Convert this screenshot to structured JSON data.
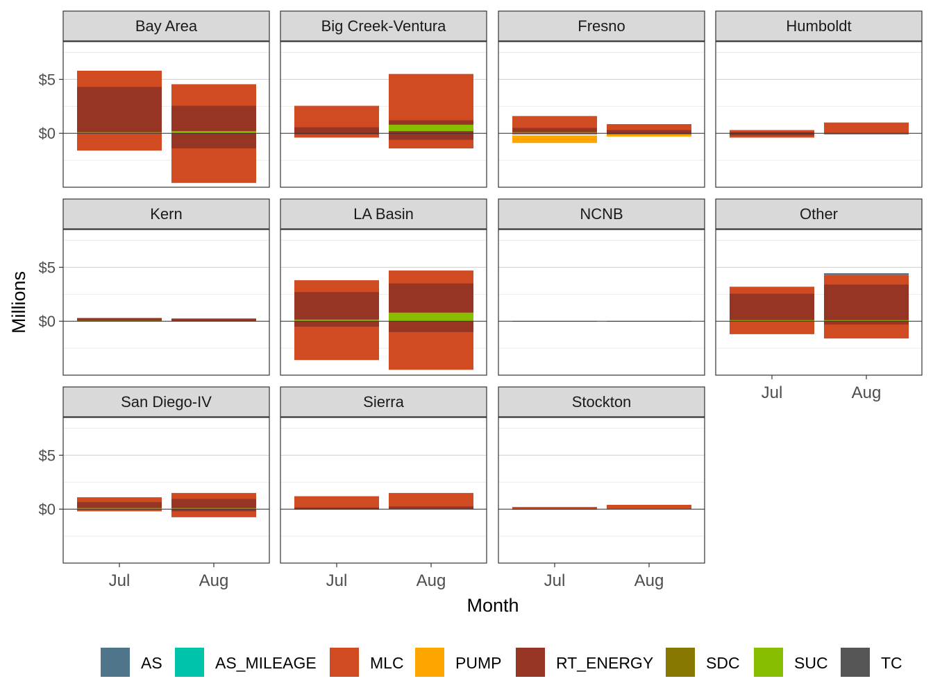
{
  "chart_data": {
    "type": "bar",
    "stacked": true,
    "faceted": true,
    "xlabel": "Month",
    "ylabel": "Millions",
    "categories": [
      "Jul",
      "Aug"
    ],
    "ylim": [
      -5,
      8.5
    ],
    "yticks": [
      0,
      5
    ],
    "ytick_labels": [
      "$0",
      "$5"
    ],
    "legend_position": "bottom",
    "legend": [
      {
        "name": "AS",
        "color": "#4E7589"
      },
      {
        "name": "AS_MILEAGE",
        "color": "#00C4AA"
      },
      {
        "name": "MLC",
        "color": "#D04A22"
      },
      {
        "name": "PUMP",
        "color": "#FFA500"
      },
      {
        "name": "RT_ENERGY",
        "color": "#963523"
      },
      {
        "name": "SDC",
        "color": "#867800"
      },
      {
        "name": "SUC",
        "color": "#87BE00"
      },
      {
        "name": "TC",
        "color": "#555555"
      }
    ],
    "facets": [
      {
        "name": "Bay Area",
        "values": {
          "Jul": {
            "MLC": [
              -1.6,
              5.8
            ],
            "RT_ENERGY": [
              0,
              4.3
            ],
            "SUC": [
              0,
              0.1
            ]
          },
          "Aug": {
            "MLC": [
              -4.6,
              4.55
            ],
            "RT_ENERGY": [
              -1.4,
              2.55
            ],
            "SUC": [
              0,
              0.2
            ]
          }
        }
      },
      {
        "name": "Big Creek-Ventura",
        "values": {
          "Jul": {
            "MLC": [
              -0.4,
              2.55
            ],
            "RT_ENERGY": [
              -0.1,
              0.55
            ]
          },
          "Aug": {
            "MLC": [
              -1.4,
              5.5
            ],
            "RT_ENERGY": [
              -0.6,
              1.2
            ],
            "SUC": [
              0.2,
              0.8
            ]
          }
        }
      },
      {
        "name": "Fresno",
        "values": {
          "Jul": {
            "MLC": [
              -0.1,
              1.6
            ],
            "RT_ENERGY": [
              0,
              0.5
            ],
            "SUC": [
              0,
              0.1
            ],
            "PUMP": [
              -0.9,
              -0.2
            ]
          },
          "Aug": {
            "MLC": [
              0,
              0.85
            ],
            "RT_ENERGY": [
              -0.1,
              0.3
            ],
            "PUMP": [
              -0.3,
              -0.1
            ]
          }
        }
      },
      {
        "name": "Humboldt",
        "values": {
          "Jul": {
            "MLC": [
              -0.4,
              0.3
            ],
            "RT_ENERGY": [
              -0.2,
              0.1
            ]
          },
          "Aug": {
            "MLC": [
              -0.1,
              1.0
            ]
          }
        }
      },
      {
        "name": "Kern",
        "values": {
          "Jul": {
            "RT_ENERGY": [
              0,
              0.3
            ],
            "SUC": [
              0,
              0.05
            ]
          },
          "Aug": {
            "RT_ENERGY": [
              0,
              0.25
            ]
          }
        }
      },
      {
        "name": "LA Basin",
        "values": {
          "Jul": {
            "MLC": [
              -3.6,
              3.8
            ],
            "RT_ENERGY": [
              -0.5,
              2.7
            ],
            "SUC": [
              0,
              0.15
            ]
          },
          "Aug": {
            "MLC": [
              -4.5,
              4.7
            ],
            "RT_ENERGY": [
              -1.0,
              3.5
            ],
            "SUC": [
              0,
              0.8
            ]
          }
        }
      },
      {
        "name": "NCNB",
        "values": {
          "Jul": {
            "MLC": [
              -0.02,
              0.02
            ]
          },
          "Aug": {
            "MLC": [
              -0.02,
              0.02
            ]
          }
        }
      },
      {
        "name": "Other",
        "values": {
          "Jul": {
            "MLC": [
              -1.2,
              3.2
            ],
            "RT_ENERGY": [
              0,
              2.55
            ],
            "SUC": [
              0,
              0.1
            ]
          },
          "Aug": {
            "MLC": [
              -1.6,
              4.3
            ],
            "RT_ENERGY": [
              -0.3,
              3.4
            ],
            "SUC": [
              0,
              0.1
            ],
            "AS": [
              4.3,
              4.45
            ]
          }
        }
      },
      {
        "name": "San Diego-IV",
        "values": {
          "Jul": {
            "MLC": [
              -0.2,
              1.1
            ],
            "RT_ENERGY": [
              0,
              0.65
            ],
            "SUC": [
              0,
              0.1
            ]
          },
          "Aug": {
            "MLC": [
              -0.75,
              1.5
            ],
            "RT_ENERGY": [
              -0.2,
              0.95
            ],
            "SUC": [
              0,
              0.1
            ]
          }
        }
      },
      {
        "name": "Sierra",
        "values": {
          "Jul": {
            "MLC": [
              -0.05,
              1.2
            ],
            "RT_ENERGY": [
              0,
              0.15
            ]
          },
          "Aug": {
            "MLC": [
              0,
              1.5
            ],
            "RT_ENERGY": [
              0,
              0.25
            ]
          }
        }
      },
      {
        "name": "Stockton",
        "values": {
          "Jul": {
            "MLC": [
              -0.05,
              0.2
            ]
          },
          "Aug": {
            "MLC": [
              0,
              0.4
            ]
          }
        }
      }
    ]
  }
}
